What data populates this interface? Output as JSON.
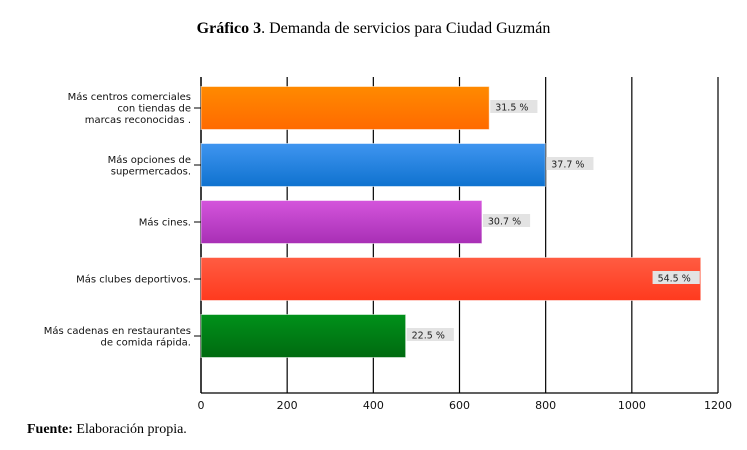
{
  "title_bold": "Gráfico 3",
  "title_rest": ". Demanda de servicios para Ciudad Guzmán",
  "source_bold": "Fuente:",
  "source_rest": " Elaboración propia.",
  "chart_data": {
    "type": "bar",
    "orientation": "horizontal",
    "categories": [
      [
        "Más centros comerciales",
        "con tiendas de",
        "marcas reconocidas ."
      ],
      [
        "Más opciones de",
        "supermercados."
      ],
      [
        "Más cines."
      ],
      [
        "Más clubes deportivos."
      ],
      [
        "Más cadenas en restaurantes",
        "de comida rápida."
      ]
    ],
    "values": [
      669,
      799,
      652,
      1160,
      475
    ],
    "data_labels": [
      "31.5 %",
      "37.7 %",
      "30.7 %",
      "54.5 %",
      "22.5 %"
    ],
    "colors": [
      [
        "#ff8a00",
        "#ff6a00"
      ],
      [
        "#3f95f0",
        "#0f72cf"
      ],
      [
        "#d455dc",
        "#a82fb5"
      ],
      [
        "#ff5c42",
        "#ff3a1e"
      ],
      [
        "#00911a",
        "#006a10"
      ]
    ],
    "xlim": [
      0,
      1200
    ],
    "xticks": [
      0,
      200,
      400,
      600,
      800,
      1000,
      1200
    ],
    "grid": true,
    "legend": "none"
  }
}
